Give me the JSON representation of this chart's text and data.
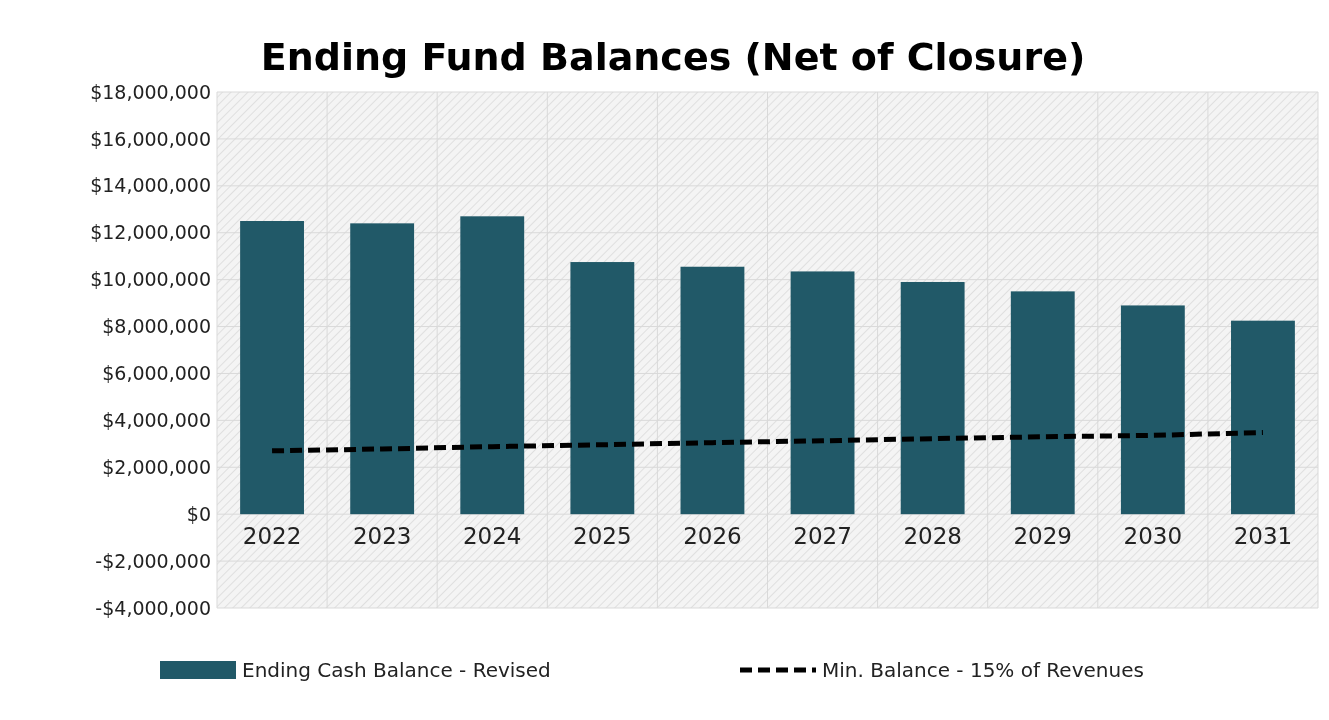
{
  "chart_data": {
    "type": "bar",
    "title": "Ending Fund Balances (Net of Closure)",
    "categories": [
      "2022",
      "2023",
      "2024",
      "2025",
      "2026",
      "2027",
      "2028",
      "2029",
      "2030",
      "2031"
    ],
    "series": [
      {
        "name": "Ending Cash Balance - Revised",
        "color": "#215968",
        "values": [
          12500000,
          12400000,
          12700000,
          10750000,
          10550000,
          10350000,
          9900000,
          9500000,
          8900000,
          8250000
        ]
      },
      {
        "name": "Min. Balance - 15% of Revenues",
        "type": "line",
        "color": "#000000",
        "line_style": "dashed",
        "marker": "none",
        "values": [
          2700000,
          2780000,
          2880000,
          2960000,
          3050000,
          3130000,
          3220000,
          3300000,
          3360000,
          3480000
        ]
      }
    ],
    "ylim": [
      -4000000,
      18000000
    ],
    "yticks": [
      {
        "value": -4000000,
        "label": "-$4,000,000"
      },
      {
        "value": -2000000,
        "label": "-$2,000,000"
      },
      {
        "value": 0,
        "label": "$0"
      },
      {
        "value": 2000000,
        "label": "$2,000,000"
      },
      {
        "value": 4000000,
        "label": "$4,000,000"
      },
      {
        "value": 6000000,
        "label": "$6,000,000"
      },
      {
        "value": 8000000,
        "label": "$8,000,000"
      },
      {
        "value": 10000000,
        "label": "$10,000,000"
      },
      {
        "value": 12000000,
        "label": "$12,000,000"
      },
      {
        "value": 14000000,
        "label": "$14,000,000"
      },
      {
        "value": 16000000,
        "label": "$16,000,000"
      },
      {
        "value": 18000000,
        "label": "$18,000,000"
      }
    ],
    "grid": true,
    "legend": "bottom"
  }
}
